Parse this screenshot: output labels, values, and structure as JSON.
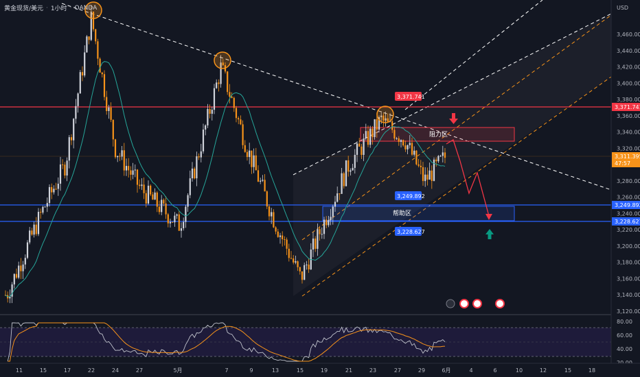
{
  "header": {
    "symbol": "黄金现货/美元",
    "interval": "1小时",
    "exchange": "OANDA"
  },
  "axis": {
    "currency": "USD",
    "y_ticks": [
      "3,460.000",
      "3,440.000",
      "3,420.000",
      "3,400.000",
      "3,380.000",
      "3,360.000",
      "3,340.000",
      "3,320.000",
      "3,300.000",
      "3,280.000",
      "3,260.000",
      "3,240.000",
      "3,220.000",
      "3,200.000",
      "3,180.000",
      "3,160.000",
      "3,140.000",
      "3,120.000"
    ],
    "x_ticks": [
      "11",
      "15",
      "17",
      "22",
      "24",
      "27",
      "5月",
      "7",
      "9",
      "13",
      "15",
      "19",
      "21",
      "23",
      "27",
      "29",
      "6月",
      "4",
      "6",
      "10",
      "12",
      "15",
      "18"
    ]
  },
  "price_tags": {
    "resistance_line": "3,371.741",
    "support_upper": "3,249.892",
    "support_lower": "3,228.627",
    "current_price": "3,311.395",
    "countdown": "47:57"
  },
  "zones": {
    "resistance": "阻力区",
    "support": "帮助区"
  },
  "rsi_axis": {
    "ticks": [
      "80.00",
      "60.00",
      "40.00",
      "20.00"
    ]
  },
  "colors": {
    "background": "#131722",
    "bull": "#d1d4dc",
    "bear": "#f7931a",
    "ma": "#26a69a",
    "red_line": "#f23645",
    "blue_line": "#2962ff",
    "orange": "#f7931a"
  },
  "chart_data": {
    "type": "line",
    "series": [
      {
        "x": [
          "11",
          "15",
          "17",
          "22",
          "24",
          "27",
          "5月",
          "7",
          "9",
          "13",
          "15",
          "19",
          "21",
          "23",
          "27",
          "29",
          "6月"
        ],
        "values": [
          3140,
          3240,
          3300,
          3480,
          3320,
          3270,
          3225,
          3420,
          3320,
          3230,
          3160,
          3230,
          3300,
          3355,
          3330,
          3280,
          3311
        ]
      }
    ],
    "ylim": [
      3120,
      3480
    ],
    "levels": [
      3371.741,
      3249.892,
      3228.627
    ]
  }
}
